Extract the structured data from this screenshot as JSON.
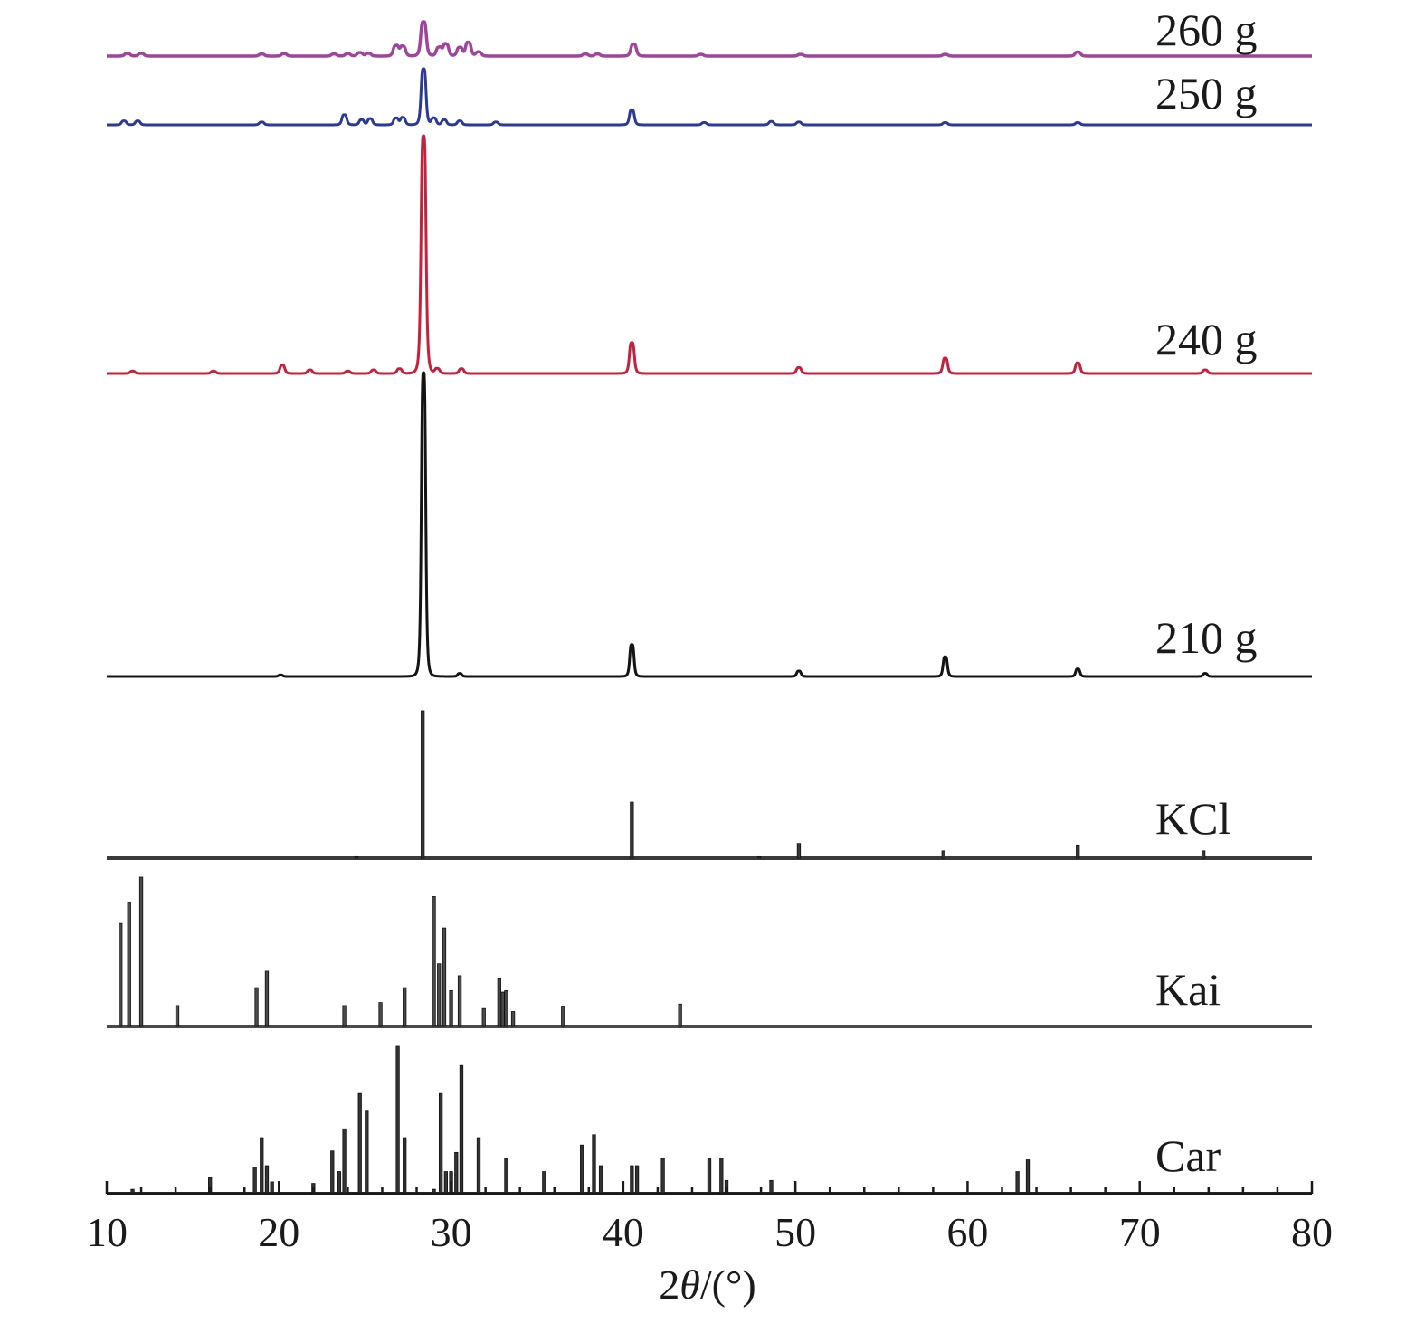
{
  "chart_data": {
    "type": "line",
    "title": "",
    "xlabel": "2θ/(°)",
    "ylabel": "",
    "xlim": [
      10,
      80
    ],
    "xticks": [
      10,
      20,
      30,
      40,
      50,
      60,
      70,
      80
    ],
    "grid": false,
    "legend": "none",
    "series": [
      {
        "name": "260 g",
        "color": "#a1449c",
        "kind": "pattern",
        "max_intensity": 1.0,
        "peaks": [
          [
            11.2,
            0.08
          ],
          [
            12.0,
            0.08
          ],
          [
            19.0,
            0.06
          ],
          [
            20.3,
            0.07
          ],
          [
            23.2,
            0.06
          ],
          [
            24.0,
            0.07
          ],
          [
            24.7,
            0.1
          ],
          [
            25.2,
            0.08
          ],
          [
            26.8,
            0.3
          ],
          [
            27.2,
            0.28
          ],
          [
            28.4,
            1.0
          ],
          [
            29.3,
            0.25
          ],
          [
            29.7,
            0.35
          ],
          [
            30.5,
            0.25
          ],
          [
            31.0,
            0.4
          ],
          [
            31.6,
            0.12
          ],
          [
            37.8,
            0.06
          ],
          [
            38.5,
            0.06
          ],
          [
            40.6,
            0.35
          ],
          [
            44.5,
            0.05
          ],
          [
            50.3,
            0.05
          ],
          [
            58.7,
            0.05
          ],
          [
            66.4,
            0.12
          ]
        ]
      },
      {
        "name": "250 g",
        "color": "#2b3a98",
        "kind": "pattern",
        "max_intensity": 1.0,
        "peaks": [
          [
            11.0,
            0.07
          ],
          [
            11.8,
            0.07
          ],
          [
            19.0,
            0.05
          ],
          [
            23.8,
            0.18
          ],
          [
            24.8,
            0.09
          ],
          [
            25.3,
            0.11
          ],
          [
            26.8,
            0.12
          ],
          [
            27.2,
            0.13
          ],
          [
            28.4,
            1.0
          ],
          [
            29.0,
            0.12
          ],
          [
            29.6,
            0.09
          ],
          [
            30.5,
            0.07
          ],
          [
            32.6,
            0.05
          ],
          [
            40.5,
            0.27
          ],
          [
            44.7,
            0.04
          ],
          [
            48.6,
            0.06
          ],
          [
            50.2,
            0.05
          ],
          [
            58.7,
            0.04
          ],
          [
            66.4,
            0.04
          ]
        ]
      },
      {
        "name": "240 g",
        "color": "#c8203c",
        "kind": "pattern",
        "max_intensity": 1.0,
        "peaks": [
          [
            11.5,
            0.01
          ],
          [
            16.2,
            0.01
          ],
          [
            20.2,
            0.035
          ],
          [
            21.8,
            0.015
          ],
          [
            24.0,
            0.01
          ],
          [
            25.5,
            0.015
          ],
          [
            27.0,
            0.02
          ],
          [
            28.4,
            1.0
          ],
          [
            29.2,
            0.02
          ],
          [
            30.6,
            0.02
          ],
          [
            40.5,
            0.13
          ],
          [
            50.2,
            0.025
          ],
          [
            58.7,
            0.065
          ],
          [
            66.4,
            0.045
          ],
          [
            73.8,
            0.015
          ]
        ]
      },
      {
        "name": "210 g",
        "color": "#141414",
        "kind": "pattern",
        "max_intensity": 1.0,
        "peaks": [
          [
            20.1,
            0.005
          ],
          [
            28.4,
            1.0
          ],
          [
            30.5,
            0.01
          ],
          [
            40.5,
            0.105
          ],
          [
            50.2,
            0.018
          ],
          [
            58.7,
            0.065
          ],
          [
            66.4,
            0.025
          ],
          [
            73.8,
            0.01
          ]
        ]
      },
      {
        "name": "KCl",
        "color": "#3a3a3a",
        "kind": "sticks",
        "max_intensity": 100,
        "peaks": [
          [
            24.5,
            1
          ],
          [
            28.35,
            100
          ],
          [
            40.5,
            38
          ],
          [
            47.9,
            1
          ],
          [
            50.2,
            10
          ],
          [
            58.6,
            5
          ],
          [
            66.4,
            9
          ],
          [
            73.7,
            5
          ]
        ]
      },
      {
        "name": "Kai",
        "color": "#4a4a4a",
        "kind": "sticks",
        "max_intensity": 100,
        "peaks": [
          [
            10.8,
            69
          ],
          [
            11.3,
            83
          ],
          [
            12.0,
            100
          ],
          [
            14.1,
            14
          ],
          [
            18.7,
            26
          ],
          [
            19.3,
            37
          ],
          [
            23.8,
            14
          ],
          [
            25.9,
            16
          ],
          [
            27.3,
            26
          ],
          [
            29.0,
            87
          ],
          [
            29.3,
            42
          ],
          [
            29.6,
            66
          ],
          [
            30.0,
            24
          ],
          [
            30.5,
            34
          ],
          [
            31.9,
            12
          ],
          [
            32.8,
            32
          ],
          [
            33.0,
            23
          ],
          [
            33.2,
            24
          ],
          [
            33.6,
            10
          ],
          [
            36.5,
            13
          ],
          [
            43.3,
            15
          ]
        ]
      },
      {
        "name": "Car",
        "color": "#333333",
        "kind": "sticks",
        "max_intensity": 100,
        "peaks": [
          [
            11.5,
            3
          ],
          [
            16.0,
            11
          ],
          [
            18.6,
            18
          ],
          [
            19.0,
            38
          ],
          [
            19.3,
            19
          ],
          [
            19.6,
            8
          ],
          [
            22.0,
            7
          ],
          [
            23.1,
            29
          ],
          [
            23.5,
            15
          ],
          [
            23.8,
            44
          ],
          [
            24.7,
            68
          ],
          [
            25.1,
            56
          ],
          [
            26.9,
            100
          ],
          [
            27.3,
            38
          ],
          [
            29.0,
            3
          ],
          [
            29.4,
            68
          ],
          [
            29.7,
            15
          ],
          [
            30.0,
            15
          ],
          [
            30.3,
            28
          ],
          [
            30.6,
            87
          ],
          [
            31.6,
            38
          ],
          [
            33.2,
            24
          ],
          [
            35.4,
            15
          ],
          [
            37.6,
            33
          ],
          [
            38.3,
            40
          ],
          [
            38.7,
            19
          ],
          [
            40.5,
            19
          ],
          [
            40.8,
            19
          ],
          [
            42.3,
            24
          ],
          [
            45.0,
            24
          ],
          [
            45.7,
            24
          ],
          [
            46.0,
            9
          ],
          [
            48.6,
            9
          ],
          [
            62.9,
            15
          ],
          [
            63.5,
            23
          ]
        ]
      }
    ]
  }
}
